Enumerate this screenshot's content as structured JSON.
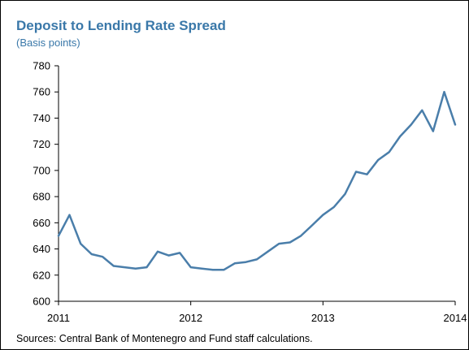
{
  "chart_data": {
    "type": "line",
    "title": "Deposit to Lending Rate Spread",
    "subtitle": "(Basis points)",
    "xlabel": "",
    "ylabel": "",
    "ylim": [
      600,
      780
    ],
    "yticks": [
      600,
      620,
      640,
      660,
      680,
      700,
      720,
      740,
      760,
      780
    ],
    "xlim": [
      2011,
      2014
    ],
    "xticks": [
      2011,
      2012,
      2013,
      2014
    ],
    "grid": false,
    "series": [
      {
        "color": "#4a7eaa",
        "points": [
          [
            2011.0,
            650
          ],
          [
            2011.083,
            666
          ],
          [
            2011.167,
            644
          ],
          [
            2011.25,
            636
          ],
          [
            2011.333,
            634
          ],
          [
            2011.417,
            627
          ],
          [
            2011.5,
            626
          ],
          [
            2011.583,
            625
          ],
          [
            2011.667,
            626
          ],
          [
            2011.75,
            638
          ],
          [
            2011.833,
            635
          ],
          [
            2011.917,
            637
          ],
          [
            2012.0,
            626
          ],
          [
            2012.083,
            625
          ],
          [
            2012.167,
            624
          ],
          [
            2012.25,
            624
          ],
          [
            2012.333,
            629
          ],
          [
            2012.417,
            630
          ],
          [
            2012.5,
            632
          ],
          [
            2012.583,
            638
          ],
          [
            2012.667,
            644
          ],
          [
            2012.75,
            645
          ],
          [
            2012.833,
            650
          ],
          [
            2012.917,
            658
          ],
          [
            2013.0,
            666
          ],
          [
            2013.083,
            672
          ],
          [
            2013.167,
            682
          ],
          [
            2013.25,
            699
          ],
          [
            2013.333,
            697
          ],
          [
            2013.417,
            708
          ],
          [
            2013.5,
            714
          ],
          [
            2013.583,
            726
          ],
          [
            2013.667,
            735
          ],
          [
            2013.75,
            746
          ],
          [
            2013.833,
            730
          ],
          [
            2013.917,
            760
          ],
          [
            2014.0,
            735
          ]
        ]
      }
    ]
  },
  "source_text": "Sources: Central Bank of Montenegro and Fund staff calculations."
}
